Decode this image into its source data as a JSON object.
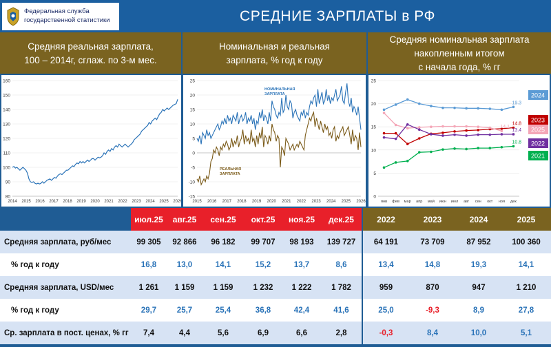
{
  "header": {
    "logo_line1": "Федеральная служба",
    "logo_line2": "государственной статистики",
    "title": "СРЕДНИЕ ЗАРПЛАТЫ в РФ"
  },
  "panels": [
    {
      "heading_line1": "Средняя реальная зарплата,",
      "heading_line2": "100 – 2014г, сглаж. по 3-м мес."
    },
    {
      "heading_line1": "Номинальная и реальная",
      "heading_line2": "зарплата, % год к году"
    },
    {
      "heading_line1": "Средняя номинальная зарплата",
      "heading_line2": "накопленным итогом",
      "heading_line3": "с начала года, % гг"
    }
  ],
  "chart_data": [
    {
      "type": "line",
      "xlabel": "",
      "ylabel": "",
      "ylim": [
        80,
        160
      ],
      "yticks": [
        "80",
        "90",
        "100",
        "110",
        "120",
        "130",
        "140",
        "150",
        "160"
      ],
      "xticks": [
        "2014",
        "2015",
        "2016",
        "2017",
        "2018",
        "2019",
        "2020",
        "2021",
        "2022",
        "2023",
        "2024",
        "2025",
        "2026"
      ],
      "series": [
        {
          "color": "#2a73b8",
          "values": [
            100,
            100.5,
            99.5,
            100,
            99,
            98,
            99,
            100,
            99,
            98,
            96,
            92,
            90,
            89.5,
            90,
            89,
            88.5,
            89,
            88.5,
            89,
            90,
            89,
            90,
            91,
            91.5,
            92,
            91,
            92,
            93,
            92.5,
            94,
            95,
            95.5,
            95,
            96,
            97,
            98,
            98,
            99,
            100,
            101,
            100.5,
            102,
            103,
            102.5,
            104,
            103,
            104,
            103,
            104,
            105,
            104,
            105,
            106,
            106,
            105,
            106,
            107,
            106.5,
            107,
            108,
            110,
            109,
            111,
            112,
            111,
            113,
            112,
            114,
            115,
            114,
            116,
            115,
            114,
            115,
            116,
            115,
            114,
            115,
            116,
            117,
            119,
            120,
            121,
            122,
            123,
            125,
            126,
            127,
            128,
            129,
            131,
            130,
            132,
            133,
            134,
            133,
            135,
            137,
            138,
            140,
            139,
            140,
            141,
            140,
            141,
            142,
            143,
            143.5,
            144,
            147
          ]
        }
      ]
    },
    {
      "type": "line",
      "xlabel": "",
      "ylabel": "",
      "ylim": [
        -15,
        25
      ],
      "yticks": [
        "-15",
        "-10",
        "-5",
        "0",
        "5",
        "10",
        "15",
        "20",
        "25"
      ],
      "xticks": [
        "2015",
        "2016",
        "2017",
        "2018",
        "2019",
        "2020",
        "2021",
        "2022",
        "2023",
        "2024",
        "2025",
        "2026"
      ],
      "series": [
        {
          "name": "НОМИНАЛЬНАЯ ЗАРПЛАТА",
          "color": "#2a73b8",
          "values": [
            5,
            4,
            6,
            3,
            7,
            6,
            5,
            8,
            6,
            7,
            5,
            6,
            7,
            8,
            9,
            10,
            8,
            9,
            11,
            10,
            12,
            10,
            13,
            11,
            12,
            10,
            13,
            12,
            11,
            14,
            10,
            12,
            13,
            11,
            12,
            14,
            10,
            12,
            11,
            13,
            10,
            12,
            8,
            11,
            10,
            14,
            12,
            15,
            11,
            13,
            12,
            10,
            14,
            11,
            18,
            16,
            15,
            13,
            12,
            14,
            13,
            19,
            14,
            15,
            20,
            16,
            15,
            18,
            17,
            12,
            14,
            15,
            13,
            12,
            11,
            14,
            13,
            15,
            12,
            14,
            13,
            16,
            18,
            17,
            19,
            20,
            16,
            22,
            17,
            19,
            21,
            17,
            18,
            22,
            18,
            20,
            17,
            19,
            18,
            20,
            22,
            18,
            19,
            20,
            23,
            18,
            17,
            21,
            24,
            18,
            16,
            19,
            14,
            16,
            15,
            13,
            16,
            12,
            8
          ]
        },
        {
          "name": "РЕАЛЬНАЯ ЗАРПЛАТА",
          "color": "#7a5a18",
          "values": [
            -9,
            -10,
            -8,
            -11,
            -10,
            -9,
            -10,
            -8,
            -9,
            -7,
            -3,
            -2,
            1,
            0,
            2,
            1,
            -1,
            2,
            1,
            3,
            2,
            4,
            3,
            1,
            2,
            5,
            2,
            4,
            3,
            6,
            2,
            4,
            5,
            8,
            3,
            6,
            4,
            5,
            3,
            8,
            4,
            5,
            2,
            6,
            3,
            7,
            5,
            9,
            2,
            6,
            5,
            3,
            6,
            4,
            10,
            8,
            7,
            4,
            6,
            5,
            -5,
            2,
            1,
            -1,
            5,
            4,
            3,
            1,
            2,
            3,
            1,
            2,
            3,
            2,
            4,
            3,
            2,
            1,
            6,
            8,
            10,
            12,
            11,
            13,
            14,
            9,
            12,
            10,
            8,
            11,
            9,
            7,
            10,
            8,
            9,
            6,
            7,
            5,
            8,
            9,
            4,
            6,
            5,
            7,
            8,
            9,
            6,
            7,
            8,
            9,
            6,
            3,
            8,
            4,
            6,
            5,
            1,
            7,
            2
          ]
        }
      ]
    },
    {
      "type": "line",
      "xlabel": "",
      "ylabel": "",
      "ylim": [
        0,
        25
      ],
      "yticks": [
        "0",
        "5",
        "10",
        "15",
        "20",
        "25"
      ],
      "categories": [
        "янв",
        "фев",
        "мар",
        "апр",
        "май",
        "июн",
        "июл",
        "авг",
        "сен",
        "окт",
        "ноя",
        "дек"
      ],
      "series": [
        {
          "name": "2024",
          "color": "#5b9bd5",
          "values": [
            18.7,
            19.8,
            20.9,
            20.0,
            19.5,
            19.1,
            19.1,
            19.0,
            19.0,
            18.9,
            18.7,
            19.3
          ],
          "end_label": "19.3"
        },
        {
          "name": "2023",
          "color": "#c00000",
          "values": [
            13.6,
            13.6,
            11.3,
            12.5,
            13.5,
            13.7,
            14.0,
            14.2,
            14.3,
            14.5,
            14.6,
            14.8
          ],
          "end_label": "14.8"
        },
        {
          "name": "2025",
          "color": "#f4a6b7",
          "values": [
            18.0,
            15.4,
            14.7,
            14.9,
            15.0,
            15.1,
            15.1,
            15.1,
            15.0,
            14.8,
            14.1,
            null
          ],
          "end_label": "14.1"
        },
        {
          "name": "2022",
          "color": "#7030a0",
          "values": [
            12.7,
            12.4,
            15.5,
            14.4,
            13.4,
            13.1,
            13.3,
            13.1,
            13.3,
            13.3,
            13.4,
            13.4
          ],
          "end_label": "13.4"
        },
        {
          "name": "2021",
          "color": "#00b050",
          "values": [
            6.2,
            7.3,
            7.6,
            9.5,
            9.6,
            10.1,
            10.3,
            10.2,
            10.4,
            10.4,
            10.6,
            10.8
          ],
          "end_label": "10.8"
        }
      ],
      "legend": [
        "2024",
        "2023",
        "2025",
        "2022",
        "2021"
      ],
      "legend_colors": [
        "#5b9bd5",
        "#c00000",
        "#f4a6b7",
        "#7030a0",
        "#00b050"
      ]
    }
  ],
  "table": {
    "headers_red": [
      "июл.25",
      "авг.25",
      "сен.25",
      "окт.25",
      "ноя.25",
      "дек.25"
    ],
    "headers_olive": [
      "2022",
      "2023",
      "2024",
      "2025"
    ],
    "rows": [
      {
        "label": "Средняя зарплата, руб/мес",
        "indent": false,
        "cls": "r-a",
        "cells": [
          [
            "99 305",
            "blk"
          ],
          [
            "92 866",
            "blk"
          ],
          [
            "96 182",
            "blk"
          ],
          [
            "99 707",
            "blk"
          ],
          [
            "98 193",
            "blk"
          ],
          [
            "139 727",
            "blk"
          ],
          [
            "64 191",
            "blk"
          ],
          [
            "73 709",
            "blk"
          ],
          [
            "87 952",
            "blk"
          ],
          [
            "100 360",
            "blk"
          ]
        ]
      },
      {
        "label": "% год к году",
        "indent": true,
        "cls": "r-b",
        "cells": [
          [
            "16,8",
            "blue"
          ],
          [
            "13,0",
            "blue"
          ],
          [
            "14,1",
            "blue"
          ],
          [
            "15,2",
            "blue"
          ],
          [
            "13,7",
            "blue"
          ],
          [
            "8,6",
            "blue"
          ],
          [
            "13,4",
            "blue"
          ],
          [
            "14,8",
            "blue"
          ],
          [
            "19,3",
            "blue"
          ],
          [
            "14,1",
            "blue"
          ]
        ]
      },
      {
        "label": "Средняя зарплата, USD/мес",
        "indent": false,
        "cls": "r-a",
        "cells": [
          [
            "1 261",
            "blk"
          ],
          [
            "1 159",
            "blk"
          ],
          [
            "1 159",
            "blk"
          ],
          [
            "1 232",
            "blk"
          ],
          [
            "1 222",
            "blk"
          ],
          [
            "1 782",
            "blk"
          ],
          [
            "959",
            "blk"
          ],
          [
            "870",
            "blk"
          ],
          [
            "947",
            "blk"
          ],
          [
            "1 210",
            "blk"
          ]
        ]
      },
      {
        "label": "% год к году",
        "indent": true,
        "cls": "r-b",
        "cells": [
          [
            "29,7",
            "blue"
          ],
          [
            "25,7",
            "blue"
          ],
          [
            "25,4",
            "blue"
          ],
          [
            "36,8",
            "blue"
          ],
          [
            "42,4",
            "blue"
          ],
          [
            "41,6",
            "blue"
          ],
          [
            "25,0",
            "blue"
          ],
          [
            "-9,3",
            "red"
          ],
          [
            "8,9",
            "blue"
          ],
          [
            "27,8",
            "blue"
          ]
        ]
      },
      {
        "label": "Ср. зарплата в пост. ценах, % гг",
        "indent": false,
        "cls": "r-a",
        "cells": [
          [
            "7,4",
            "blk"
          ],
          [
            "4,4",
            "blk"
          ],
          [
            "5,6",
            "blk"
          ],
          [
            "6,9",
            "blk"
          ],
          [
            "6,6",
            "blk"
          ],
          [
            "2,8",
            "blk"
          ],
          [
            "-0,3",
            "red"
          ],
          [
            "8,4",
            "blue"
          ],
          [
            "10,0",
            "blue"
          ],
          [
            "5,1",
            "blue"
          ]
        ]
      }
    ]
  }
}
